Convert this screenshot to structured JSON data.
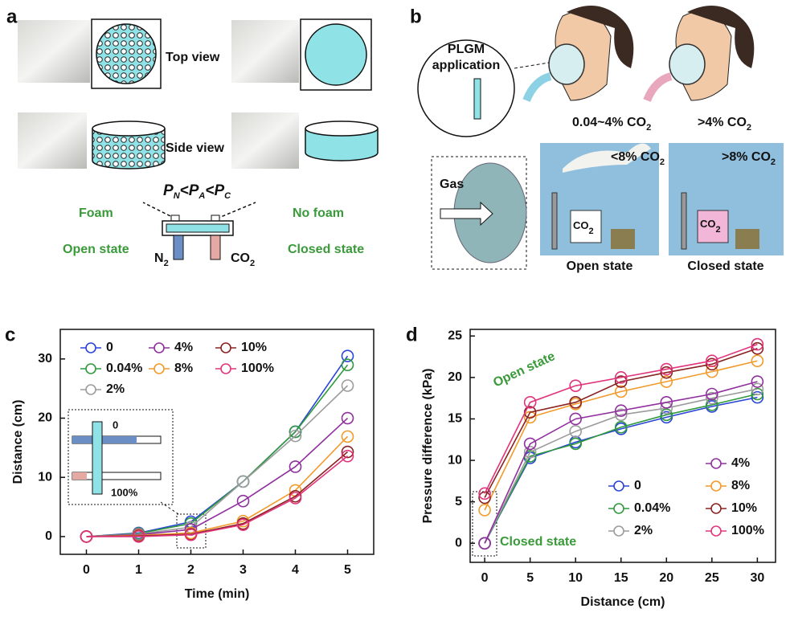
{
  "panel_a": {
    "label": "a",
    "top_view": "Top view",
    "side_view": "Side view",
    "relation": [
      {
        "text": "P",
        "sub": "N"
      },
      {
        "text": "<P",
        "sub": "A"
      },
      {
        "text": "<P",
        "sub": "C"
      }
    ],
    "foam": "Foam",
    "no_foam": "No foam",
    "open_state": "Open state",
    "closed_state": "Closed state",
    "n2": {
      "text": "N",
      "sub": "2"
    },
    "co2": {
      "text": "CO",
      "sub": "2"
    }
  },
  "panel_b": {
    "label": "b",
    "plgm": [
      "PLGM",
      "application"
    ],
    "low_co2": {
      "text": "0.04~4% CO",
      "sub": "2"
    },
    "high_co2": {
      "text": ">4% CO",
      "sub": "2"
    },
    "gas": "Gas",
    "below8": {
      "text": "<8% CO",
      "sub": "2"
    },
    "above8": {
      "text": ">8% CO",
      "sub": "2"
    },
    "tank_open": {
      "text": "CO",
      "sub": "2"
    },
    "tank_closed": {
      "text": "CO",
      "sub": "2"
    },
    "open_state": "Open state",
    "closed_state": "Closed state"
  },
  "chart_data": [
    {
      "type": "line",
      "panel": "c",
      "xlabel": "Time (min)",
      "ylabel": "Distance (cm)",
      "x": [
        0,
        1,
        2,
        3,
        4,
        5
      ],
      "xlim": [
        -0.5,
        5.5
      ],
      "xticks": [
        0,
        1,
        2,
        3,
        4,
        5
      ],
      "ylim": [
        -3,
        35
      ],
      "yticks": [
        0,
        10,
        20,
        30
      ],
      "inset_labels": [
        "0",
        "100%"
      ],
      "series": [
        {
          "name": "0",
          "color": "#2b44d8",
          "values": [
            0,
            0.6,
            2.5,
            9.3,
            17.7,
            30.5
          ]
        },
        {
          "name": "0.04%",
          "color": "#2f9a3c",
          "values": [
            0,
            0.5,
            2.2,
            9.3,
            17.7,
            29
          ]
        },
        {
          "name": "2%",
          "color": "#9c9c9c",
          "values": [
            0,
            0.4,
            1.6,
            9.3,
            17,
            25.5
          ]
        },
        {
          "name": "4%",
          "color": "#90309e",
          "values": [
            0,
            0.3,
            1.2,
            6,
            11.8,
            20
          ]
        },
        {
          "name": "8%",
          "color": "#f29a2a",
          "values": [
            0,
            0.2,
            0.6,
            2.6,
            7.8,
            16.9
          ]
        },
        {
          "name": "10%",
          "color": "#8b2222",
          "values": [
            0,
            0.1,
            0.4,
            2.2,
            6.8,
            14.3
          ]
        },
        {
          "name": "100%",
          "color": "#e0357c",
          "values": [
            0,
            0,
            0.3,
            2,
            6.5,
            13.6
          ]
        }
      ]
    },
    {
      "type": "line",
      "panel": "d",
      "xlabel": "Distance (cm)",
      "ylabel": "Pressure difference (kPa)",
      "x": [
        0,
        5,
        10,
        15,
        20,
        25,
        30
      ],
      "xlim": [
        -1.6,
        32
      ],
      "xticks": [
        0,
        5,
        10,
        15,
        20,
        25,
        30
      ],
      "ylim": [
        -2.3,
        25.8
      ],
      "yticks": [
        0,
        5,
        10,
        15,
        20,
        25
      ],
      "annotations": [
        "Open state",
        "Closed state"
      ],
      "series": [
        {
          "name": "0",
          "color": "#2b44d8",
          "values": [
            0,
            10.3,
            12.2,
            13.8,
            15.2,
            16.5,
            17.6
          ]
        },
        {
          "name": "0.04%",
          "color": "#2f9a3c",
          "values": [
            0,
            10.5,
            12,
            14,
            15.5,
            16.7,
            18
          ]
        },
        {
          "name": "2%",
          "color": "#9c9c9c",
          "values": [
            0,
            11,
            13.5,
            15.5,
            16.3,
            17.5,
            18.6
          ]
        },
        {
          "name": "4%",
          "color": "#90309e",
          "values": [
            0,
            12,
            15,
            16,
            17,
            18,
            19.5
          ]
        },
        {
          "name": "8%",
          "color": "#f29a2a",
          "values": [
            4,
            15.2,
            16.8,
            18.3,
            19.5,
            20.7,
            22
          ]
        },
        {
          "name": "10%",
          "color": "#8b2222",
          "values": [
            5.5,
            15.8,
            17,
            19.5,
            20.6,
            21.6,
            23.5
          ]
        },
        {
          "name": "100%",
          "color": "#e0357c",
          "values": [
            6,
            17,
            19,
            20,
            21,
            22,
            24
          ]
        }
      ]
    }
  ]
}
